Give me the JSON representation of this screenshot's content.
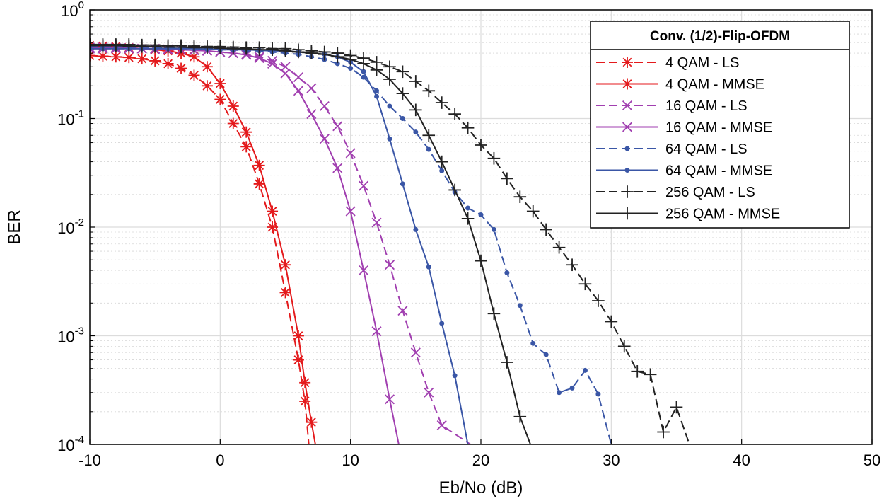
{
  "chart_data": {
    "type": "line",
    "xlabel": "Eb/No (dB)",
    "ylabel": "BER",
    "xlim": [
      -10,
      50
    ],
    "ylim": [
      0.0001,
      1
    ],
    "yscale": "log",
    "grid": true,
    "minor_grid": true,
    "x_ticks": [
      "-10",
      "0",
      "10",
      "20",
      "30",
      "40",
      "50"
    ],
    "y_ticks": [
      {
        "base": "10",
        "exp": "0"
      },
      {
        "base": "10",
        "exp": "-1"
      },
      {
        "base": "10",
        "exp": "-2"
      },
      {
        "base": "10",
        "exp": "-3"
      },
      {
        "base": "10",
        "exp": "-4"
      }
    ],
    "legend": {
      "title": "Conv. (1/2)-Flip-OFDM",
      "placement": "top-right"
    },
    "series": [
      {
        "name": "4 QAM - LS",
        "color": "#e41a1c",
        "dash": "dashed",
        "marker": "asterisk",
        "points": [
          [
            -10,
            0.38
          ],
          [
            -9,
            0.375
          ],
          [
            -8,
            0.37
          ],
          [
            -7,
            0.365
          ],
          [
            -6,
            0.355
          ],
          [
            -5,
            0.34
          ],
          [
            -4,
            0.32
          ],
          [
            -3,
            0.29
          ],
          [
            -2,
            0.25
          ],
          [
            -1,
            0.2
          ],
          [
            0,
            0.15
          ],
          [
            1,
            0.09
          ],
          [
            2,
            0.055
          ],
          [
            3,
            0.025
          ],
          [
            4,
            0.01
          ],
          [
            5,
            0.0025
          ],
          [
            6,
            0.0006
          ],
          [
            6.5,
            0.00025
          ],
          [
            6.8,
            0.0001
          ]
        ]
      },
      {
        "name": "4 QAM - MMSE",
        "color": "#e41a1c",
        "dash": "solid",
        "marker": "asterisk",
        "points": [
          [
            -10,
            0.47
          ],
          [
            -9,
            0.465
          ],
          [
            -8,
            0.46
          ],
          [
            -7,
            0.45
          ],
          [
            -6,
            0.44
          ],
          [
            -5,
            0.43
          ],
          [
            -4,
            0.42
          ],
          [
            -3,
            0.4
          ],
          [
            -2,
            0.37
          ],
          [
            -1,
            0.3
          ],
          [
            0,
            0.21
          ],
          [
            1,
            0.13
          ],
          [
            2,
            0.075
          ],
          [
            3,
            0.037
          ],
          [
            4,
            0.014
          ],
          [
            5,
            0.0045
          ],
          [
            6,
            0.001
          ],
          [
            6.5,
            0.00037
          ],
          [
            7,
            0.00016
          ],
          [
            7.3,
            0.0001
          ]
        ]
      },
      {
        "name": "16 QAM - LS",
        "color": "#a13fb0",
        "dash": "dashed",
        "marker": "x",
        "points": [
          [
            -10,
            0.44
          ],
          [
            -9,
            0.44
          ],
          [
            -8,
            0.44
          ],
          [
            -7,
            0.44
          ],
          [
            -6,
            0.44
          ],
          [
            -5,
            0.435
          ],
          [
            -4,
            0.43
          ],
          [
            -3,
            0.43
          ],
          [
            -2,
            0.425
          ],
          [
            -1,
            0.42
          ],
          [
            0,
            0.41
          ],
          [
            1,
            0.4
          ],
          [
            2,
            0.39
          ],
          [
            3,
            0.37
          ],
          [
            4,
            0.34
          ],
          [
            5,
            0.3
          ],
          [
            6,
            0.24
          ],
          [
            7,
            0.19
          ],
          [
            8,
            0.13
          ],
          [
            9,
            0.085
          ],
          [
            10,
            0.048
          ],
          [
            11,
            0.024
          ],
          [
            12,
            0.011
          ],
          [
            13,
            0.0045
          ],
          [
            14,
            0.0017
          ],
          [
            15,
            0.0007
          ],
          [
            16,
            0.0003
          ],
          [
            17,
            0.00015
          ],
          [
            19.2,
            0.0001
          ]
        ]
      },
      {
        "name": "16 QAM - MMSE",
        "color": "#a13fb0",
        "dash": "solid",
        "marker": "x",
        "points": [
          [
            -10,
            0.45
          ],
          [
            -9,
            0.45
          ],
          [
            -8,
            0.45
          ],
          [
            -7,
            0.445
          ],
          [
            -6,
            0.44
          ],
          [
            -5,
            0.44
          ],
          [
            -4,
            0.435
          ],
          [
            -3,
            0.43
          ],
          [
            -2,
            0.425
          ],
          [
            -1,
            0.42
          ],
          [
            0,
            0.41
          ],
          [
            1,
            0.4
          ],
          [
            2,
            0.385
          ],
          [
            3,
            0.36
          ],
          [
            4,
            0.32
          ],
          [
            5,
            0.26
          ],
          [
            6,
            0.18
          ],
          [
            7,
            0.11
          ],
          [
            8,
            0.065
          ],
          [
            9,
            0.035
          ],
          [
            10,
            0.014
          ],
          [
            11,
            0.004
          ],
          [
            12,
            0.0011
          ],
          [
            13,
            0.00026
          ],
          [
            13.7,
            0.0001
          ]
        ]
      },
      {
        "name": "64 QAM - LS",
        "color": "#3a56a6",
        "dash": "dashed",
        "marker": "dot",
        "points": [
          [
            -10,
            0.46
          ],
          [
            -9,
            0.46
          ],
          [
            -8,
            0.46
          ],
          [
            -7,
            0.455
          ],
          [
            -6,
            0.455
          ],
          [
            -5,
            0.45
          ],
          [
            -4,
            0.45
          ],
          [
            -3,
            0.445
          ],
          [
            -2,
            0.44
          ],
          [
            -1,
            0.44
          ],
          [
            0,
            0.43
          ],
          [
            1,
            0.43
          ],
          [
            2,
            0.42
          ],
          [
            3,
            0.42
          ],
          [
            4,
            0.41
          ],
          [
            5,
            0.4
          ],
          [
            6,
            0.39
          ],
          [
            7,
            0.37
          ],
          [
            8,
            0.35
          ],
          [
            9,
            0.32
          ],
          [
            10,
            0.29
          ],
          [
            11,
            0.24
          ],
          [
            12,
            0.18
          ],
          [
            13,
            0.13
          ],
          [
            14,
            0.1
          ],
          [
            15,
            0.075
          ],
          [
            16,
            0.052
          ],
          [
            17,
            0.033
          ],
          [
            18,
            0.021
          ],
          [
            19,
            0.015
          ],
          [
            20,
            0.013
          ],
          [
            21,
            0.0095
          ],
          [
            22,
            0.0038
          ],
          [
            23,
            0.0019
          ],
          [
            24,
            0.00085
          ],
          [
            25,
            0.00067
          ],
          [
            26,
            0.0003
          ],
          [
            27,
            0.00033
          ],
          [
            28,
            0.00048
          ],
          [
            29,
            0.00029
          ],
          [
            30,
            0.0001
          ]
        ]
      },
      {
        "name": "64 QAM - MMSE",
        "color": "#3a56a6",
        "dash": "solid",
        "marker": "dot",
        "points": [
          [
            -10,
            0.44
          ],
          [
            -9,
            0.44
          ],
          [
            -8,
            0.44
          ],
          [
            -7,
            0.44
          ],
          [
            -6,
            0.44
          ],
          [
            -5,
            0.44
          ],
          [
            -4,
            0.44
          ],
          [
            -3,
            0.44
          ],
          [
            -2,
            0.44
          ],
          [
            -1,
            0.435
          ],
          [
            0,
            0.43
          ],
          [
            1,
            0.43
          ],
          [
            2,
            0.43
          ],
          [
            3,
            0.425
          ],
          [
            4,
            0.42
          ],
          [
            5,
            0.42
          ],
          [
            6,
            0.41
          ],
          [
            7,
            0.4
          ],
          [
            8,
            0.39
          ],
          [
            9,
            0.37
          ],
          [
            10,
            0.33
          ],
          [
            11,
            0.27
          ],
          [
            12,
            0.16
          ],
          [
            13,
            0.065
          ],
          [
            14,
            0.025
          ],
          [
            15,
            0.0095
          ],
          [
            16,
            0.0043
          ],
          [
            17,
            0.0013
          ],
          [
            18,
            0.00043
          ],
          [
            19,
            0.0001
          ]
        ]
      },
      {
        "name": "256 QAM - LS",
        "color": "#222222",
        "dash": "dashed",
        "marker": "plus",
        "points": [
          [
            -10,
            0.48
          ],
          [
            -9,
            0.48
          ],
          [
            -8,
            0.48
          ],
          [
            -7,
            0.48
          ],
          [
            -6,
            0.475
          ],
          [
            -5,
            0.475
          ],
          [
            -4,
            0.47
          ],
          [
            -3,
            0.47
          ],
          [
            -2,
            0.465
          ],
          [
            -1,
            0.46
          ],
          [
            0,
            0.46
          ],
          [
            1,
            0.455
          ],
          [
            2,
            0.45
          ],
          [
            3,
            0.45
          ],
          [
            4,
            0.44
          ],
          [
            5,
            0.44
          ],
          [
            6,
            0.43
          ],
          [
            7,
            0.42
          ],
          [
            8,
            0.41
          ],
          [
            9,
            0.4
          ],
          [
            10,
            0.38
          ],
          [
            11,
            0.36
          ],
          [
            12,
            0.33
          ],
          [
            13,
            0.3
          ],
          [
            14,
            0.27
          ],
          [
            15,
            0.22
          ],
          [
            16,
            0.18
          ],
          [
            17,
            0.14
          ],
          [
            18,
            0.11
          ],
          [
            19,
            0.082
          ],
          [
            20,
            0.057
          ],
          [
            21,
            0.043
          ],
          [
            22,
            0.028
          ],
          [
            23,
            0.019
          ],
          [
            24,
            0.014
          ],
          [
            25,
            0.0095
          ],
          [
            26,
            0.0065
          ],
          [
            27,
            0.0045
          ],
          [
            28,
            0.003
          ],
          [
            29,
            0.0021
          ],
          [
            30,
            0.00135
          ],
          [
            31,
            0.0008
          ],
          [
            32,
            0.00047
          ],
          [
            33,
            0.00044
          ],
          [
            34,
            0.00013
          ],
          [
            35,
            0.00022
          ],
          [
            36,
            0.0001
          ]
        ]
      },
      {
        "name": "256 QAM - MMSE",
        "color": "#222222",
        "dash": "solid",
        "marker": "plus",
        "points": [
          [
            -10,
            0.47
          ],
          [
            -9,
            0.47
          ],
          [
            -8,
            0.47
          ],
          [
            -7,
            0.465
          ],
          [
            -6,
            0.46
          ],
          [
            -5,
            0.46
          ],
          [
            -4,
            0.455
          ],
          [
            -3,
            0.455
          ],
          [
            -2,
            0.45
          ],
          [
            -1,
            0.45
          ],
          [
            0,
            0.445
          ],
          [
            1,
            0.44
          ],
          [
            2,
            0.44
          ],
          [
            3,
            0.43
          ],
          [
            4,
            0.43
          ],
          [
            5,
            0.42
          ],
          [
            6,
            0.41
          ],
          [
            7,
            0.4
          ],
          [
            8,
            0.39
          ],
          [
            9,
            0.37
          ],
          [
            10,
            0.35
          ],
          [
            11,
            0.32
          ],
          [
            12,
            0.28
          ],
          [
            13,
            0.23
          ],
          [
            14,
            0.17
          ],
          [
            15,
            0.12
          ],
          [
            16,
            0.07
          ],
          [
            17,
            0.04
          ],
          [
            18,
            0.022
          ],
          [
            19,
            0.012
          ],
          [
            20,
            0.0049
          ],
          [
            21,
            0.0016
          ],
          [
            22,
            0.00057
          ],
          [
            23,
            0.00018
          ],
          [
            23.8,
            0.0001
          ]
        ]
      }
    ]
  }
}
